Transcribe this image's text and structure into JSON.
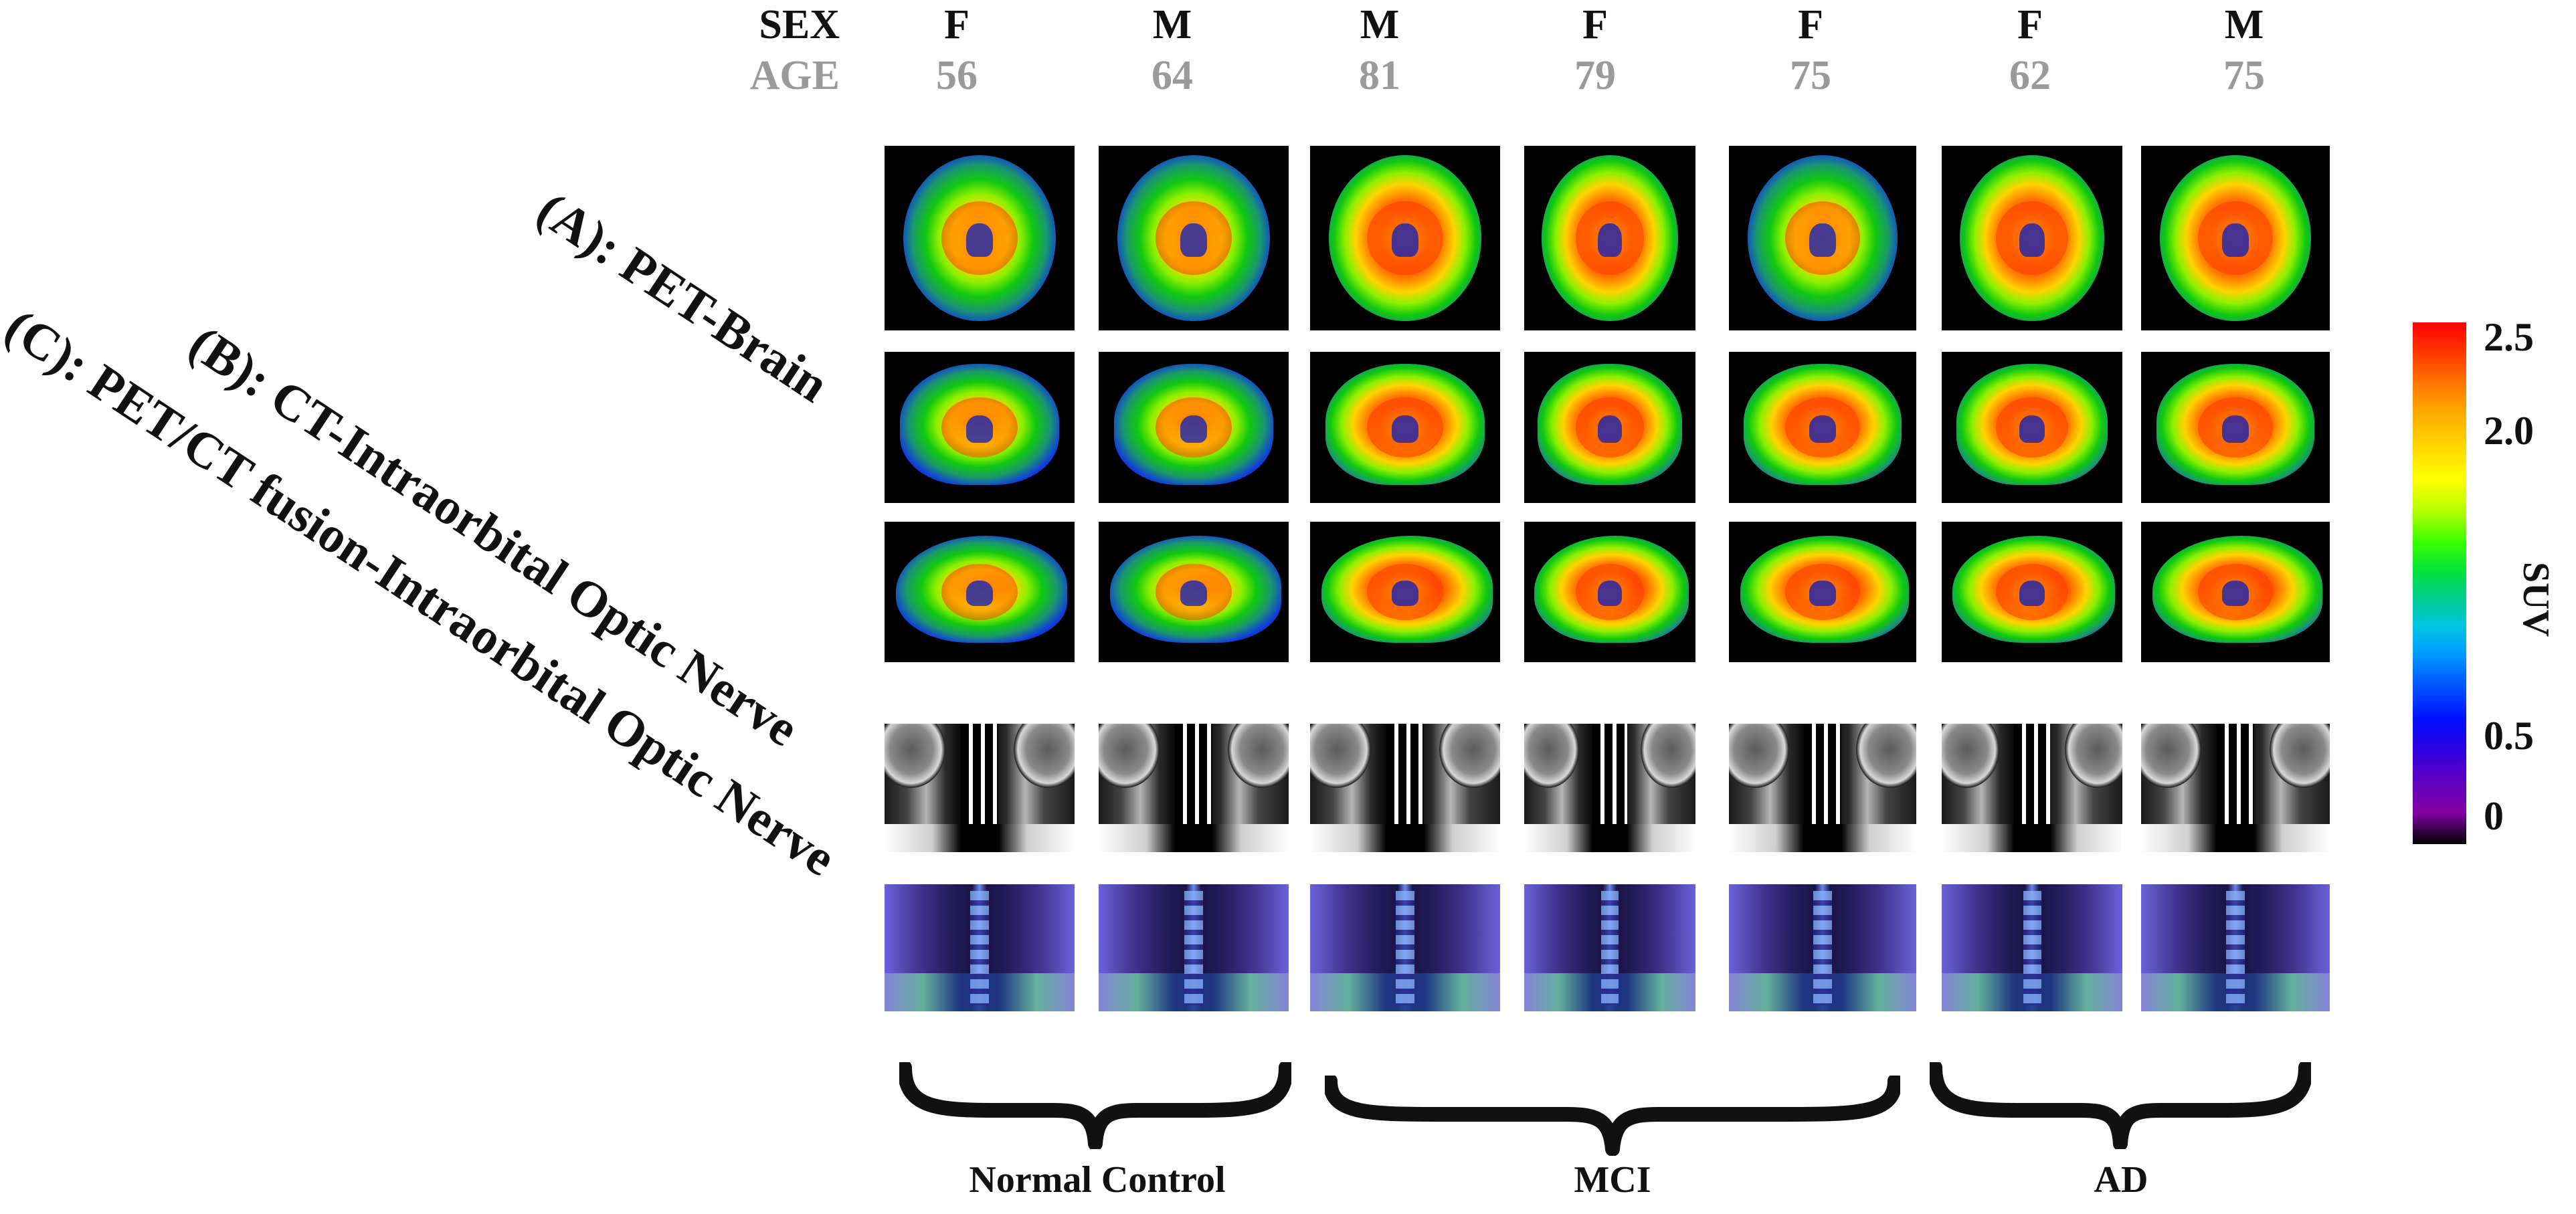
{
  "header": {
    "sex_label": "SEX",
    "age_label": "AGE"
  },
  "subjects": [
    {
      "sex": "F",
      "age": "56"
    },
    {
      "sex": "M",
      "age": "64"
    },
    {
      "sex": "M",
      "age": "81"
    },
    {
      "sex": "F",
      "age": "79"
    },
    {
      "sex": "F",
      "age": "75"
    },
    {
      "sex": "F",
      "age": "62"
    },
    {
      "sex": "M",
      "age": "75"
    }
  ],
  "row_labels": {
    "a": "(A): PET-Brain",
    "b": "(B): CT-Intraorbital Optic Nerve",
    "c": "(C): PET/CT fusion-Intraorbital Optic Nerve"
  },
  "colorbar": {
    "title": "SUV",
    "ticks": [
      "2.5",
      "2.0",
      "0.5",
      "0"
    ],
    "colors": [
      "#ff0000",
      "#ffd800",
      "#00c8a0",
      "#0010ff",
      "#000000"
    ]
  },
  "groups": [
    {
      "label": "Normal Control"
    },
    {
      "label": "MCI"
    },
    {
      "label": "AD"
    }
  ]
}
